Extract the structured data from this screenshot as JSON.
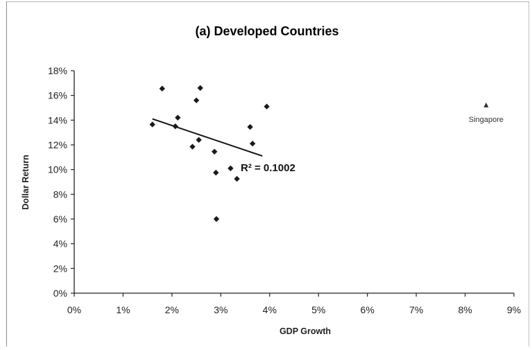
{
  "chart_data": {
    "type": "scatter",
    "title": "(a) Developed Countries",
    "xlabel": "GDP Growth",
    "ylabel": "Dollar Return",
    "xlim": [
      0,
      0.09
    ],
    "ylim": [
      0,
      0.18
    ],
    "x_ticks": [
      0,
      0.01,
      0.02,
      0.03,
      0.04,
      0.05,
      0.06,
      0.07,
      0.08,
      0.09
    ],
    "y_ticks": [
      0,
      0.02,
      0.04,
      0.06,
      0.08,
      0.1,
      0.12,
      0.14,
      0.16,
      0.18
    ],
    "x_tick_labels": [
      "0%",
      "1%",
      "2%",
      "3%",
      "4%",
      "5%",
      "6%",
      "7%",
      "8%",
      "9%"
    ],
    "y_tick_labels": [
      "0%",
      "2%",
      "4%",
      "6%",
      "8%",
      "10%",
      "12%",
      "14%",
      "16%",
      "18%"
    ],
    "grid": false,
    "legend": "none",
    "series": [
      {
        "marker": "diamond",
        "color": "#1a1a1a",
        "points": [
          {
            "x": 0.016,
            "y": 0.1365
          },
          {
            "x": 0.018,
            "y": 0.1655
          },
          {
            "x": 0.0207,
            "y": 0.135
          },
          {
            "x": 0.0212,
            "y": 0.142
          },
          {
            "x": 0.0242,
            "y": 0.1185
          },
          {
            "x": 0.025,
            "y": 0.156
          },
          {
            "x": 0.0255,
            "y": 0.124
          },
          {
            "x": 0.0258,
            "y": 0.166
          },
          {
            "x": 0.0287,
            "y": 0.1145
          },
          {
            "x": 0.029,
            "y": 0.0975
          },
          {
            "x": 0.0291,
            "y": 0.06
          },
          {
            "x": 0.032,
            "y": 0.101
          },
          {
            "x": 0.0333,
            "y": 0.0925
          },
          {
            "x": 0.036,
            "y": 0.1345
          },
          {
            "x": 0.0365,
            "y": 0.121
          },
          {
            "x": 0.0394,
            "y": 0.151
          }
        ]
      },
      {
        "name": "Singapore",
        "marker": "triangle",
        "color": "#333333",
        "points": [
          {
            "x": 0.0843,
            "y": 0.152
          }
        ]
      }
    ],
    "trendline": {
      "type": "linear",
      "from": {
        "x": 0.016,
        "y": 0.141
      },
      "to": {
        "x": 0.0385,
        "y": 0.111
      },
      "label": "R² = 0.1002"
    }
  }
}
